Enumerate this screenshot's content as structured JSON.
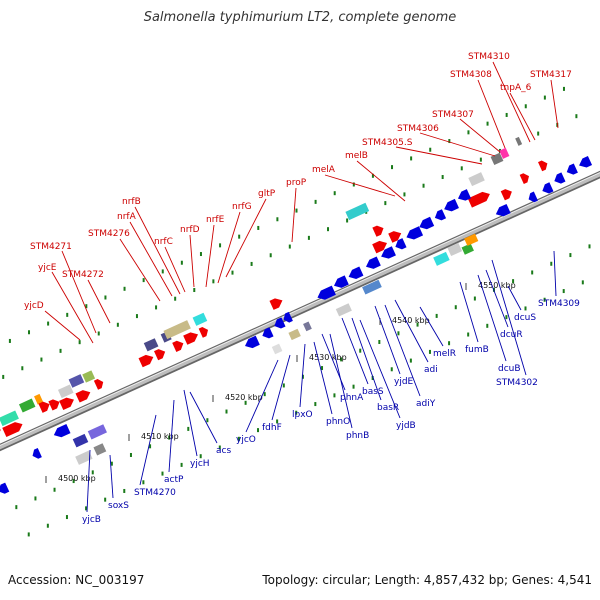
{
  "title": "Salmonella typhimurium LT2, complete genome",
  "footer": {
    "accession": "Accession: NC_003197",
    "stats": "Topology: circular; Length: 4,857,432 bp; Genes: 4,541"
  },
  "colors": {
    "forward_gene": "#ee0000",
    "reverse_gene": "#0000dd",
    "backbone": "#888888",
    "tick_dot": "#1a7a1a"
  },
  "axis": {
    "ticks": [
      "4500 kbp",
      "4510 kbp",
      "4520 kbp",
      "4530 kbp",
      "4540 kbp",
      "4550 kbp"
    ]
  },
  "genes_forward": [
    "yjcD",
    "STM4271",
    "yjcE",
    "STM4272",
    "STM4276",
    "nrfA",
    "nrfB",
    "nrfC",
    "nrfD",
    "nrfE",
    "nrfG",
    "gltP",
    "proP",
    "melA",
    "melB",
    "STM4305.S",
    "STM4306",
    "STM4307",
    "STM4308",
    "STM4310",
    "tnpA_6",
    "STM4317"
  ],
  "genes_reverse": [
    "yjcB",
    "soxS",
    "STM4270",
    "actP",
    "yjcH",
    "acs",
    "yjcO",
    "fdhF",
    "lpxO",
    "phnO",
    "phnA",
    "phnB",
    "basS",
    "basR",
    "yjdB",
    "yjdE",
    "adiY",
    "adi",
    "melR",
    "fumB",
    "dcuB",
    "dcuR",
    "STM4302",
    "dcuS",
    "STM4309"
  ]
}
